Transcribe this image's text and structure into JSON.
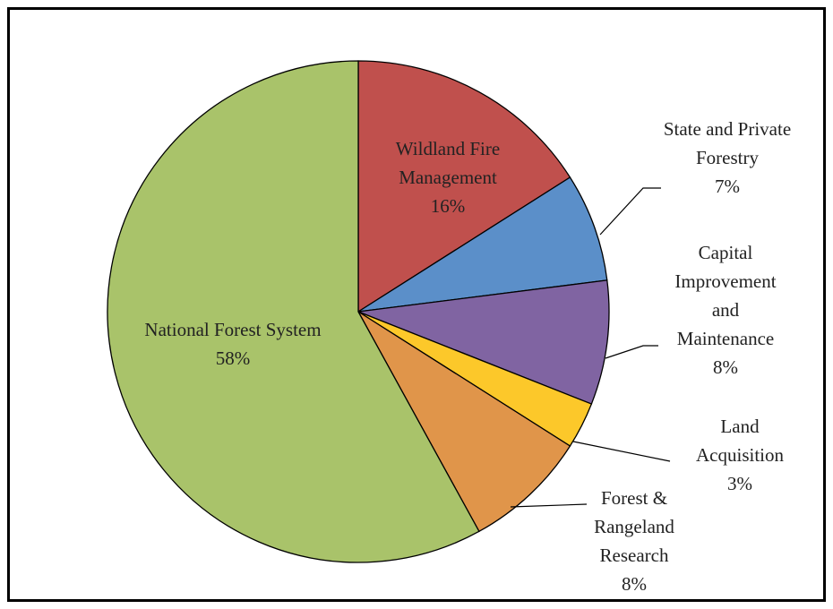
{
  "chart_data": {
    "type": "pie",
    "categories": [
      "Wildland Fire Management",
      "State and Private Forestry",
      "Capital Improvement and Maintenance",
      "Land Acquisition",
      "Forest & Rangeland Research",
      "National Forest System"
    ],
    "values": [
      16,
      7,
      8,
      3,
      8,
      58
    ],
    "value_labels": [
      "16%",
      "7%",
      "8%",
      "3%",
      "8%",
      "58%"
    ],
    "colors": [
      "#c0504d",
      "#5b8fc9",
      "#8064a2",
      "#fcc82a",
      "#e0954a",
      "#a9c36a"
    ]
  }
}
